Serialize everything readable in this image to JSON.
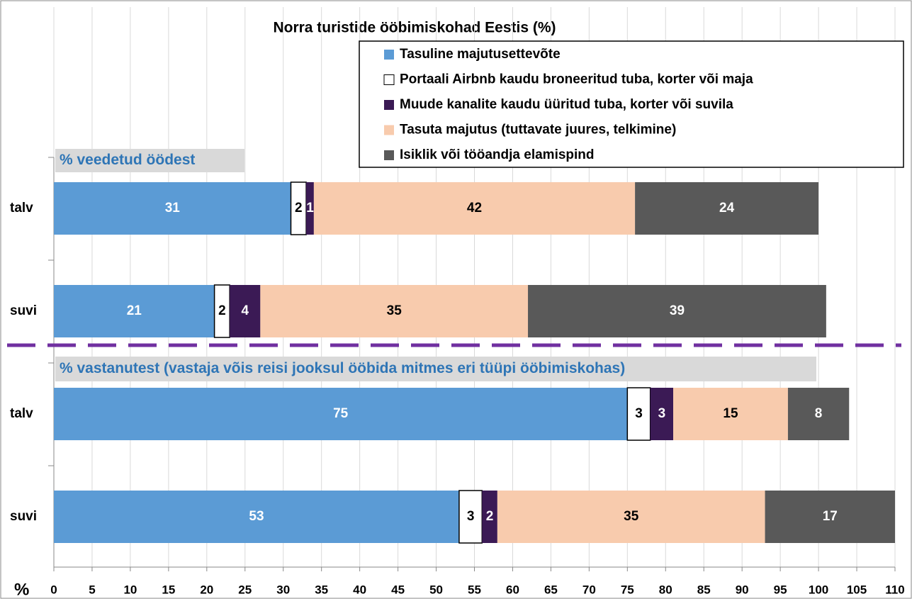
{
  "chart_data": {
    "type": "stacked-bar-horizontal",
    "title": "Norra turistide ööbimiskohad Eestis (%)",
    "xlabel": "%",
    "annotations": [
      "% veedetud öödest",
      "% vastanutest (vastaja võis reisi jooksul ööbida mitmes eri tüüpi ööbimiskohas)"
    ],
    "categories": [
      "talv",
      "suvi",
      "talv",
      "suvi"
    ],
    "series": [
      {
        "name": "Tasuline majutusettevõte",
        "color": "#5b9bd5",
        "label_color": "#ffffff",
        "values": [
          31,
          21,
          75,
          53
        ]
      },
      {
        "name": "Portaali Airbnb kaudu broneeritud tuba, korter või maja",
        "color": "#ffffff",
        "label_color": "#000000",
        "values": [
          2,
          2,
          3,
          3
        ]
      },
      {
        "name": "Muude kanalite kaudu üüritud tuba, korter või suvila",
        "color": "#3b1a55",
        "label_color": "#ffffff",
        "values": [
          1,
          4,
          3,
          2
        ]
      },
      {
        "name": "Tasuta majutus (tuttavate juures, telkimine)",
        "color": "#f8cbad",
        "label_color": "#000000",
        "values": [
          42,
          35,
          15,
          35
        ]
      },
      {
        "name": "Isiklik või tööandja elamispind",
        "color": "#595959",
        "label_color": "#ffffff",
        "values": [
          24,
          39,
          8,
          17
        ]
      }
    ],
    "xlim": [
      0,
      110
    ],
    "xticks": [
      0,
      5,
      10,
      15,
      20,
      25,
      30,
      35,
      40,
      45,
      50,
      55,
      60,
      65,
      70,
      75,
      80,
      85,
      90,
      95,
      100,
      105,
      110
    ],
    "grid": true,
    "legend": "top-right",
    "divider_color": "#7030a0"
  }
}
